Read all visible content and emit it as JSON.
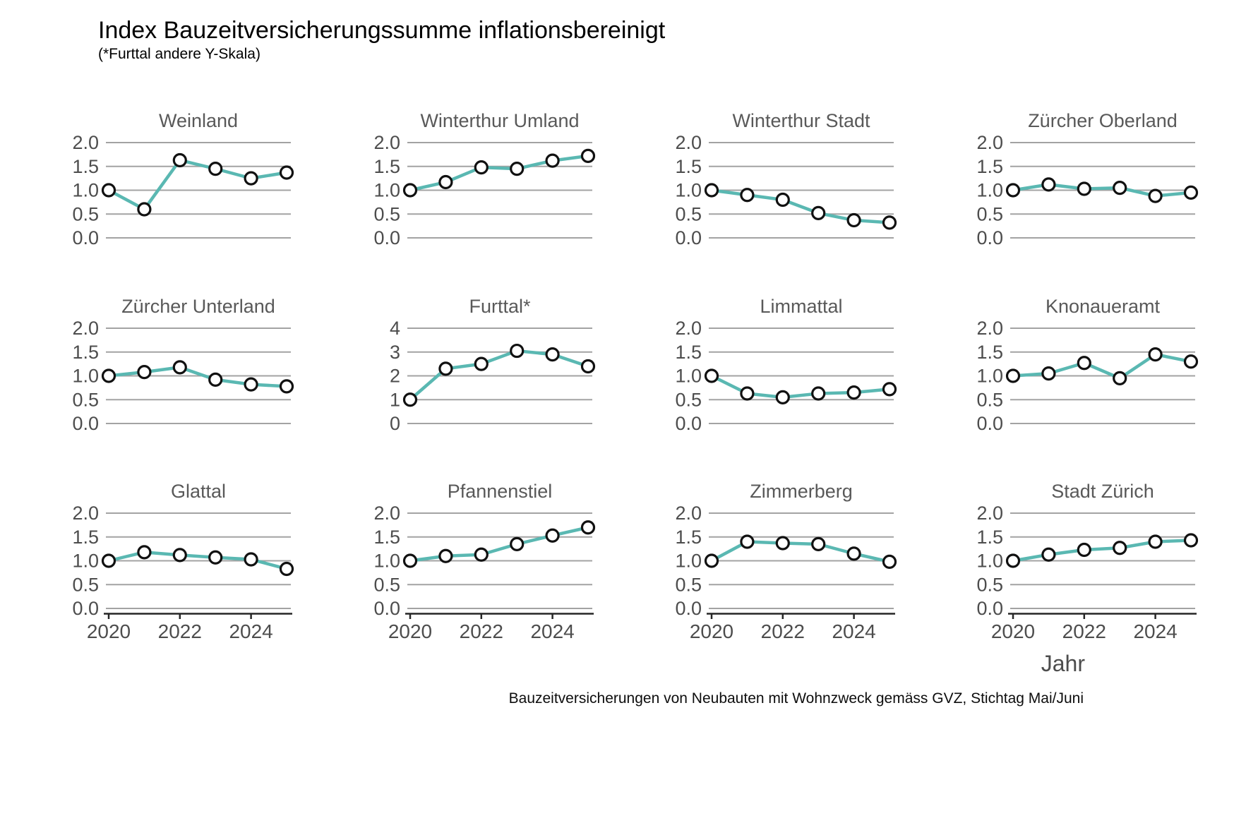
{
  "header": {
    "title": "Index Bauzeitversicherungssumme inflationsbereinigt",
    "subtitle": "(*Furttal andere Y-Skala)"
  },
  "footer": {
    "x_axis_label": "Jahr",
    "caption": "Bauzeitversicherungen von Neubauten mit Wohnzweck gemäss GVZ, Stichtag Mai/Juni"
  },
  "colors": {
    "line": "#5ab8b2",
    "point_fill": "#ffffff",
    "point_stroke": "#111111",
    "gridline": "#a3a3a3",
    "axis_line": "#262626",
    "panel_title": "#595959",
    "tick_label": "#4d4d4d"
  },
  "chart_data": {
    "type": "line",
    "title": "Index Bauzeitversicherungssumme inflationsbereinigt",
    "subtitle": "(*Furttal andere Y-Skala)",
    "xlabel": "Jahr",
    "caption": "Bauzeitversicherungen von Neubauten mit Wohnzweck gemäss GVZ, Stichtag Mai/Juni",
    "grid": true,
    "facets_per_row": 4,
    "x": [
      2020,
      2021,
      2022,
      2023,
      2024,
      2025
    ],
    "x_tick_positions": [
      2020,
      2022,
      2024
    ],
    "x_tick_labels": [
      "2020",
      "2022",
      "2024"
    ],
    "default_axis": {
      "ylim": [
        0,
        2
      ],
      "ytick_labels": [
        "2.0",
        "1.5",
        "1.0",
        "0.5",
        "0.0"
      ]
    },
    "panels": [
      {
        "title": "Weinland",
        "values": [
          1.0,
          0.6,
          1.63,
          1.45,
          1.25,
          1.37
        ]
      },
      {
        "title": "Winterthur Umland",
        "values": [
          1.0,
          1.17,
          1.48,
          1.45,
          1.62,
          1.72
        ]
      },
      {
        "title": "Winterthur Stadt",
        "values": [
          1.0,
          0.9,
          0.8,
          0.52,
          0.37,
          0.32
        ]
      },
      {
        "title": "Zürcher Oberland",
        "values": [
          1.0,
          1.12,
          1.03,
          1.05,
          0.88,
          0.95
        ]
      },
      {
        "title": "Zürcher Unterland",
        "values": [
          1.0,
          1.08,
          1.18,
          0.92,
          0.82,
          0.78
        ]
      },
      {
        "title": "Furttal*",
        "values": [
          1.0,
          2.3,
          2.5,
          3.05,
          2.9,
          2.4
        ],
        "ylim": [
          0,
          4
        ],
        "ytick_labels": [
          "4",
          "3",
          "2",
          "1",
          "0"
        ]
      },
      {
        "title": "Limmattal",
        "values": [
          1.0,
          0.63,
          0.55,
          0.63,
          0.65,
          0.72
        ]
      },
      {
        "title": "Knonaueramt",
        "values": [
          1.0,
          1.05,
          1.27,
          0.95,
          1.45,
          1.3
        ]
      },
      {
        "title": "Glattal",
        "values": [
          1.0,
          1.18,
          1.12,
          1.07,
          1.03,
          0.83
        ]
      },
      {
        "title": "Pfannenstiel",
        "values": [
          1.0,
          1.1,
          1.13,
          1.35,
          1.53,
          1.7
        ]
      },
      {
        "title": "Zimmerberg",
        "values": [
          1.0,
          1.4,
          1.37,
          1.35,
          1.15,
          0.98
        ]
      },
      {
        "title": "Stadt Zürich",
        "values": [
          1.0,
          1.13,
          1.23,
          1.27,
          1.4,
          1.43
        ]
      }
    ]
  }
}
